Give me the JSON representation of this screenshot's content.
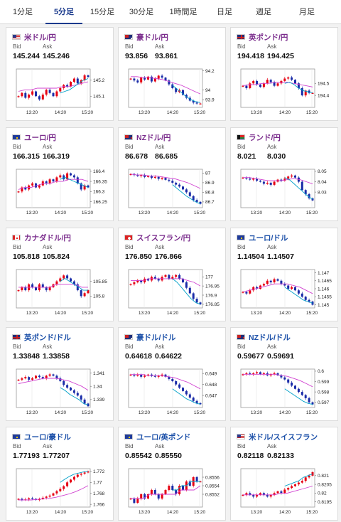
{
  "tabs": [
    {
      "label": "1分足",
      "active": false
    },
    {
      "label": "5分足",
      "active": true
    },
    {
      "label": "15分足",
      "active": false
    },
    {
      "label": "30分足",
      "active": false
    },
    {
      "label": "1時間足",
      "active": false
    },
    {
      "label": "日足",
      "active": false
    },
    {
      "label": "週足",
      "active": false
    },
    {
      "label": "月足",
      "active": false
    }
  ],
  "labels": {
    "bid": "Bid",
    "ask": "Ask"
  },
  "colors": {
    "up": "#e60012",
    "down": "#1a2ca8",
    "ma_short": "#00a0c8",
    "ma_long": "#d040d0",
    "title_purple": "#7a2c8c",
    "title_blue": "#1b4fa8"
  },
  "cards": [
    {
      "pair": "米ドル/円",
      "flag": "us",
      "title_color": "purple",
      "bid": "145.244",
      "ask": "145.246",
      "chart_data": {
        "type": "candlestick",
        "x_ticks": [
          "13:20",
          "14:20",
          "15:20"
        ],
        "y_ticks": [
          "145.2",
          "145.1"
        ],
        "ylim": [
          145.03,
          145.27
        ],
        "trend": [
          145.1,
          145.12,
          145.09,
          145.11,
          145.13,
          145.1,
          145.08,
          145.11,
          145.14,
          145.12,
          145.1,
          145.13,
          145.15,
          145.17,
          145.16,
          145.19,
          145.21,
          145.18,
          145.2,
          145.23,
          145.22
        ],
        "ma_long": [
          145.13,
          145.14,
          145.14,
          145.15,
          145.15,
          145.15,
          145.15,
          145.16,
          145.16,
          145.17,
          145.18,
          145.19
        ],
        "ma_short": [
          145.12,
          145.13,
          145.14,
          145.16,
          145.18,
          145.2,
          145.21
        ]
      }
    },
    {
      "pair": "豪ドル/円",
      "flag": "au",
      "title_color": "purple",
      "bid": "93.856",
      "ask": "93.861",
      "chart_data": {
        "type": "candlestick",
        "x_ticks": [
          "13:20",
          "14:20",
          "15:20"
        ],
        "y_ticks": [
          "94.2",
          "94",
          "93.9"
        ],
        "ylim": [
          93.82,
          94.22
        ],
        "trend": [
          94.12,
          94.1,
          94.08,
          94.13,
          94.11,
          94.14,
          94.09,
          94.12,
          94.15,
          94.13,
          94.1,
          94.06,
          94.02,
          93.98,
          94.0,
          93.95,
          93.92,
          93.89,
          93.87,
          93.86,
          93.86
        ],
        "ma_long": [
          94.14,
          94.14,
          94.13,
          94.13,
          94.12,
          94.11,
          94.09,
          94.07,
          94.05,
          94.02,
          93.99,
          93.96
        ],
        "ma_short": [
          94.05,
          94.01,
          93.97,
          93.93,
          93.9,
          93.88,
          93.87
        ]
      }
    },
    {
      "pair": "英ポンド/円",
      "flag": "gb",
      "title_color": "purple",
      "bid": "194.418",
      "ask": "194.425",
      "chart_data": {
        "type": "candlestick",
        "x_ticks": [
          "13:20",
          "14:20",
          "15:20"
        ],
        "y_ticks": [
          "194.5",
          "194.4"
        ],
        "ylim": [
          194.3,
          194.62
        ],
        "trend": [
          194.48,
          194.46,
          194.5,
          194.52,
          194.49,
          194.47,
          194.5,
          194.53,
          194.51,
          194.48,
          194.5,
          194.52,
          194.54,
          194.55,
          194.53,
          194.5,
          194.46,
          194.4,
          194.44,
          194.42,
          194.42
        ],
        "ma_long": [
          194.48,
          194.49,
          194.49,
          194.5,
          194.5,
          194.51,
          194.51,
          194.51,
          194.5,
          194.49,
          194.48,
          194.47
        ],
        "ma_short": [
          194.5,
          194.51,
          194.49,
          194.46,
          194.44,
          194.43,
          194.42
        ]
      }
    },
    {
      "pair": "ユーロ/円",
      "flag": "eu",
      "title_color": "purple",
      "bid": "166.315",
      "ask": "166.319",
      "chart_data": {
        "type": "candlestick",
        "x_ticks": [
          "13:20",
          "14:20",
          "15:20"
        ],
        "y_ticks": [
          "166.4",
          "166.35",
          "166.3",
          "166.25"
        ],
        "ylim": [
          166.22,
          166.41
        ],
        "trend": [
          166.3,
          166.32,
          166.31,
          166.33,
          166.34,
          166.32,
          166.33,
          166.35,
          166.34,
          166.36,
          166.35,
          166.37,
          166.38,
          166.36,
          166.39,
          166.38,
          166.37,
          166.34,
          166.31,
          166.33,
          166.32
        ],
        "ma_long": [
          166.31,
          166.32,
          166.32,
          166.33,
          166.34,
          166.34,
          166.35,
          166.35,
          166.36,
          166.36,
          166.36,
          166.35
        ],
        "ma_short": [
          166.36,
          166.37,
          166.36,
          166.35,
          166.34,
          166.33,
          166.32
        ]
      }
    },
    {
      "pair": "NZドル/円",
      "flag": "nz",
      "title_color": "purple",
      "bid": "86.678",
      "ask": "86.685",
      "chart_data": {
        "type": "candlestick",
        "x_ticks": [
          "13:20",
          "14:20",
          "15:20"
        ],
        "y_ticks": [
          "87",
          "86.9",
          "86.8",
          "86.7"
        ],
        "ylim": [
          86.64,
          87.04
        ],
        "trend": [
          86.99,
          86.98,
          86.97,
          86.98,
          86.96,
          86.97,
          86.95,
          86.96,
          86.94,
          86.95,
          86.93,
          86.92,
          86.9,
          86.88,
          86.86,
          86.83,
          86.8,
          86.76,
          86.72,
          86.7,
          86.68
        ],
        "ma_long": [
          86.99,
          86.98,
          86.98,
          86.97,
          86.97,
          86.96,
          86.95,
          86.94,
          86.92,
          86.9,
          86.87,
          86.84
        ],
        "ma_short": [
          86.88,
          86.84,
          86.8,
          86.76,
          86.73,
          86.7,
          86.68
        ]
      }
    },
    {
      "pair": "ランド/円",
      "flag": "za",
      "title_color": "purple",
      "bid": "8.021",
      "ask": "8.030",
      "chart_data": {
        "type": "candlestick",
        "x_ticks": [
          "13:20",
          "14:20",
          "15:20"
        ],
        "y_ticks": [
          "8.05",
          "8.04",
          "8.03"
        ],
        "ylim": [
          8.015,
          8.052
        ],
        "trend": [
          8.044,
          8.043,
          8.042,
          8.043,
          8.041,
          8.04,
          8.038,
          8.039,
          8.037,
          8.04,
          8.042,
          8.041,
          8.043,
          8.045,
          8.046,
          8.044,
          8.04,
          8.032,
          8.028,
          8.024,
          8.022
        ],
        "ma_long": [
          8.044,
          8.044,
          8.043,
          8.042,
          8.041,
          8.041,
          8.041,
          8.042,
          8.043,
          8.042,
          8.04,
          8.038
        ],
        "ma_short": [
          8.044,
          8.042,
          8.038,
          8.034,
          8.03,
          8.026,
          8.023
        ]
      }
    },
    {
      "pair": "カナダドル/円",
      "flag": "ca",
      "title_color": "purple",
      "bid": "105.818",
      "ask": "105.824",
      "chart_data": {
        "type": "candlestick",
        "x_ticks": [
          "13:20",
          "14:20",
          "15:20"
        ],
        "y_ticks": [
          "105.85",
          "105.8"
        ],
        "ylim": [
          105.76,
          105.89
        ],
        "trend": [
          105.82,
          105.83,
          105.82,
          105.84,
          105.83,
          105.82,
          105.84,
          105.83,
          105.82,
          105.83,
          105.84,
          105.85,
          105.86,
          105.87,
          105.86,
          105.85,
          105.84,
          105.82,
          105.8,
          105.81,
          105.82
        ],
        "ma_long": [
          105.83,
          105.83,
          105.83,
          105.83,
          105.83,
          105.83,
          105.84,
          105.84,
          105.84,
          105.84,
          105.83,
          105.83
        ],
        "ma_short": [
          105.85,
          105.86,
          105.85,
          105.84,
          105.83,
          105.82,
          105.82
        ]
      }
    },
    {
      "pair": "スイスフラン/円",
      "flag": "ch",
      "title_color": "purple",
      "bid": "176.850",
      "ask": "176.866",
      "chart_data": {
        "type": "candlestick",
        "x_ticks": [
          "13:20",
          "14:20",
          "15:20"
        ],
        "y_ticks": [
          "177",
          "176.95",
          "176.9",
          "176.85"
        ],
        "ylim": [
          176.83,
          177.04
        ],
        "trend": [
          176.96,
          176.97,
          176.98,
          176.97,
          176.99,
          176.98,
          177.0,
          176.99,
          176.98,
          177.0,
          177.01,
          176.99,
          177.0,
          177.01,
          176.99,
          176.97,
          176.94,
          176.91,
          176.88,
          176.86,
          176.85
        ],
        "ma_long": [
          176.98,
          176.98,
          176.98,
          176.99,
          176.99,
          176.99,
          176.99,
          176.99,
          176.99,
          176.98,
          176.97,
          176.95
        ],
        "ma_short": [
          176.99,
          176.97,
          176.94,
          176.91,
          176.88,
          176.86,
          176.85
        ]
      }
    },
    {
      "pair": "ユーロ/ドル",
      "flag": "eu",
      "title_color": "blue",
      "bid": "1.14504",
      "ask": "1.14507",
      "chart_data": {
        "type": "candlestick",
        "x_ticks": [
          "13:20",
          "14:20",
          "15:20"
        ],
        "y_ticks": [
          "1.147",
          "1.1465",
          "1.146",
          "1.1455",
          "1.145"
        ],
        "ylim": [
          1.1448,
          1.1472
        ],
        "trend": [
          1.1458,
          1.1457,
          1.1459,
          1.1461,
          1.146,
          1.1462,
          1.1463,
          1.1465,
          1.1464,
          1.1466,
          1.1465,
          1.1463,
          1.1462,
          1.146,
          1.1461,
          1.1459,
          1.1457,
          1.1455,
          1.1453,
          1.1452,
          1.145
        ],
        "ma_long": [
          1.1458,
          1.1459,
          1.146,
          1.1461,
          1.1462,
          1.1463,
          1.1463,
          1.1463,
          1.1462,
          1.1461,
          1.1459,
          1.1457
        ],
        "ma_short": [
          1.1461,
          1.1459,
          1.1457,
          1.1455,
          1.1453,
          1.1452,
          1.1451
        ]
      }
    },
    {
      "pair": "英ポンド/ドル",
      "flag": "gb",
      "title_color": "blue",
      "bid": "1.33848",
      "ask": "1.33858",
      "chart_data": {
        "type": "candlestick",
        "x_ticks": [
          "13:20",
          "14:20",
          "15:20"
        ],
        "y_ticks": [
          "1.341",
          "1.34",
          "1.339"
        ],
        "ylim": [
          1.3384,
          1.3413
        ],
        "trend": [
          1.3405,
          1.3406,
          1.3407,
          1.3405,
          1.3406,
          1.3408,
          1.3407,
          1.3406,
          1.3408,
          1.3409,
          1.3408,
          1.3406,
          1.3404,
          1.3401,
          1.3399,
          1.3397,
          1.3395,
          1.3393,
          1.339,
          1.3387,
          1.3385
        ],
        "ma_long": [
          1.3402,
          1.3403,
          1.3404,
          1.3405,
          1.3406,
          1.3406,
          1.3406,
          1.3405,
          1.3404,
          1.3402,
          1.34,
          1.3397
        ],
        "ma_short": [
          1.3399,
          1.3397,
          1.3394,
          1.3392,
          1.339,
          1.3387,
          1.3386
        ]
      }
    },
    {
      "pair": "豪ドル/ドル",
      "flag": "au",
      "title_color": "blue",
      "bid": "0.64618",
      "ask": "0.64622",
      "chart_data": {
        "type": "candlestick",
        "x_ticks": [
          "13:20",
          "14:20",
          "15:20"
        ],
        "y_ticks": [
          "0.649",
          "0.648",
          "0.647"
        ],
        "ylim": [
          0.6459,
          0.6494
        ],
        "trend": [
          0.6489,
          0.6488,
          0.6489,
          0.6487,
          0.6488,
          0.6489,
          0.6488,
          0.6487,
          0.6488,
          0.6489,
          0.6487,
          0.6485,
          0.6483,
          0.648,
          0.6477,
          0.6474,
          0.6471,
          0.6468,
          0.6465,
          0.6463,
          0.6462
        ],
        "ma_long": [
          0.6489,
          0.6489,
          0.6489,
          0.6488,
          0.6488,
          0.6488,
          0.6487,
          0.6486,
          0.6484,
          0.6482,
          0.6479,
          0.6476
        ],
        "ma_short": [
          0.6476,
          0.6473,
          0.647,
          0.6467,
          0.6465,
          0.6463,
          0.6462
        ]
      }
    },
    {
      "pair": "NZドル/ドル",
      "flag": "nz",
      "title_color": "blue",
      "bid": "0.59677",
      "ask": "0.59691",
      "chart_data": {
        "type": "candlestick",
        "x_ticks": [
          "13:20",
          "14:20",
          "15:20"
        ],
        "y_ticks": [
          "0.6",
          "0.599",
          "0.598",
          "0.597"
        ],
        "ylim": [
          0.5965,
          0.6002
        ],
        "trend": [
          0.5997,
          0.5998,
          0.5997,
          0.5998,
          0.5999,
          0.5997,
          0.5998,
          0.5996,
          0.5997,
          0.5998,
          0.5996,
          0.5994,
          0.5992,
          0.5989,
          0.5986,
          0.5983,
          0.598,
          0.5977,
          0.5974,
          0.597,
          0.5968
        ],
        "ma_long": [
          0.5997,
          0.5997,
          0.5997,
          0.5997,
          0.5997,
          0.5997,
          0.5996,
          0.5995,
          0.5993,
          0.5991,
          0.5988,
          0.5985
        ],
        "ma_short": [
          0.5983,
          0.598,
          0.5977,
          0.5974,
          0.5971,
          0.5969,
          0.5968
        ]
      }
    },
    {
      "pair": "ユーロ/豪ドル",
      "flag": "eu",
      "title_color": "blue",
      "bid": "1.77193",
      "ask": "1.77207",
      "chart_data": {
        "type": "candlestick",
        "x_ticks": [
          "13:20",
          "14:20",
          "15:20"
        ],
        "y_ticks": [
          "1.772",
          "1.77",
          "1.768",
          "1.766"
        ],
        "ylim": [
          1.7655,
          1.7725
        ],
        "trend": [
          1.767,
          1.7668,
          1.7669,
          1.7671,
          1.767,
          1.7668,
          1.767,
          1.7672,
          1.7674,
          1.7676,
          1.768,
          1.7684,
          1.7688,
          1.7693,
          1.77,
          1.7705,
          1.771,
          1.7714,
          1.7716,
          1.7718,
          1.772
        ],
        "ma_long": [
          1.7668,
          1.7668,
          1.7668,
          1.7669,
          1.767,
          1.7671,
          1.7673,
          1.7676,
          1.7679,
          1.7683,
          1.7688,
          1.7694
        ],
        "ma_short": [
          1.77,
          1.7706,
          1.7711,
          1.7715,
          1.7717,
          1.7719,
          1.772
        ]
      }
    },
    {
      "pair": "ユーロ/英ポンド",
      "flag": "eu",
      "title_color": "blue",
      "bid": "0.85542",
      "ask": "0.85550",
      "chart_data": {
        "type": "candlestick",
        "x_ticks": [
          "13:20",
          "14:20",
          "15:20"
        ],
        "y_ticks": [
          "0.8556",
          "0.8554",
          "0.8552"
        ],
        "ylim": [
          0.8549,
          0.8558
        ],
        "trend": [
          0.8551,
          0.855,
          0.8551,
          0.8552,
          0.8551,
          0.8552,
          0.8553,
          0.8552,
          0.8551,
          0.8552,
          0.8553,
          0.8554,
          0.8553,
          0.8552,
          0.8554,
          0.8553,
          0.8555,
          0.8554,
          0.8556,
          0.8555,
          0.8555
        ],
        "ma_long": [
          0.8551,
          0.8551,
          0.8551,
          0.8552,
          0.8552,
          0.8552,
          0.8552,
          0.8552,
          0.8553,
          0.8553,
          0.8553,
          0.8554
        ],
        "ma_short": [
          0.8553,
          0.8553,
          0.8554,
          0.8554,
          0.8555,
          0.8555,
          0.8555
        ]
      }
    },
    {
      "pair": "米ドル/スイスフラン",
      "flag": "us",
      "title_color": "blue",
      "bid": "0.82118",
      "ask": "0.82133",
      "chart_data": {
        "type": "candlestick",
        "x_ticks": [
          "13:20",
          "14:20",
          "15:20"
        ],
        "y_ticks": [
          "0.821",
          "0.8205",
          "0.82",
          "0.8195"
        ],
        "ylim": [
          0.8192,
          0.8214
        ],
        "trend": [
          0.8199,
          0.82,
          0.8199,
          0.8198,
          0.8199,
          0.82,
          0.8199,
          0.8198,
          0.8199,
          0.82,
          0.8201,
          0.82,
          0.8202,
          0.8203,
          0.8204,
          0.8205,
          0.8206,
          0.8207,
          0.8209,
          0.821,
          0.8212
        ],
        "ma_long": [
          0.8199,
          0.8199,
          0.8199,
          0.8199,
          0.8199,
          0.8199,
          0.82,
          0.82,
          0.8201,
          0.8202,
          0.8203,
          0.8204
        ],
        "ma_short": [
          0.8204,
          0.8205,
          0.8206,
          0.8207,
          0.8209,
          0.821,
          0.8211
        ]
      }
    }
  ]
}
